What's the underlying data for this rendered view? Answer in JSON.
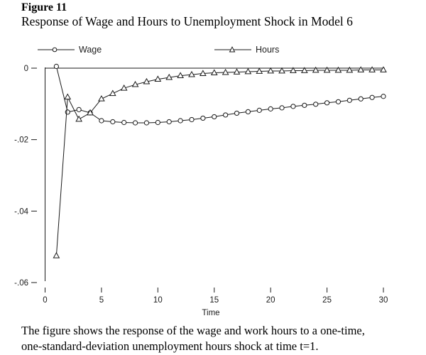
{
  "chart_data": {
    "type": "line",
    "figure_label": "Figure 11",
    "title": "Response of Wage and Hours to Unemployment Shock in Model 6",
    "caption_lines": [
      "The figure shows the response of the wage and work hours to a one-time,",
      "one-standard-deviation unemployment hours shock at time t=1."
    ],
    "xlabel": "Time",
    "ylabel": "",
    "xlim": [
      0,
      30
    ],
    "ylim": [
      -0.06,
      0
    ],
    "grid": false,
    "legend_position": "top",
    "x": [
      1,
      2,
      3,
      4,
      5,
      6,
      7,
      8,
      9,
      10,
      11,
      12,
      13,
      14,
      15,
      16,
      17,
      18,
      19,
      20,
      21,
      22,
      23,
      24,
      25,
      26,
      27,
      28,
      29,
      30
    ],
    "series": [
      {
        "name": "Wage",
        "marker": "circle",
        "values": [
          0.0005,
          -0.0123,
          -0.0116,
          -0.0125,
          -0.0147,
          -0.015,
          -0.0152,
          -0.0153,
          -0.0153,
          -0.0152,
          -0.015,
          -0.0147,
          -0.0144,
          -0.014,
          -0.0136,
          -0.0131,
          -0.0126,
          -0.0122,
          -0.0118,
          -0.0114,
          -0.0111,
          -0.0107,
          -0.0104,
          -0.0101,
          -0.0097,
          -0.0094,
          -0.009,
          -0.0086,
          -0.0082,
          -0.0079
        ]
      },
      {
        "name": "Hours",
        "marker": "triangle",
        "values": [
          -0.0525,
          -0.0081,
          -0.0143,
          -0.0125,
          -0.0086,
          -0.0071,
          -0.0056,
          -0.0046,
          -0.0038,
          -0.0031,
          -0.0026,
          -0.0021,
          -0.0018,
          -0.0015,
          -0.0013,
          -0.0012,
          -0.0011,
          -0.001,
          -0.0009,
          -0.0008,
          -0.0008,
          -0.0007,
          -0.0007,
          -0.0006,
          -0.0006,
          -0.0006,
          -0.0006,
          -0.0005,
          -0.0005,
          -0.0005
        ]
      }
    ],
    "x_ticks": {
      "values": [
        0,
        5,
        10,
        15,
        20,
        25,
        30
      ],
      "labels": [
        "0",
        "5",
        "10",
        "15",
        "20",
        "25",
        "30"
      ]
    },
    "y_ticks": {
      "values": [
        0,
        -0.02,
        -0.04,
        -0.06
      ],
      "labels": [
        "0",
        "-.02",
        "-.04",
        "-.06"
      ]
    },
    "colors": {
      "line": "#1a1a1a",
      "marker_fill": "#ffffff",
      "text": "#1a1a1a",
      "background": "#ffffff"
    }
  }
}
